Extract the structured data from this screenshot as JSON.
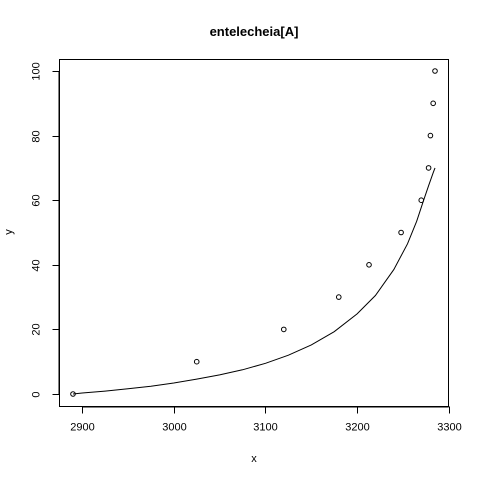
{
  "chart_data": {
    "type": "scatter",
    "title": "entelecheia[A]",
    "xlabel": "x",
    "ylabel": "y",
    "xlim": [
      2890,
      3285
    ],
    "ylim": [
      0,
      100
    ],
    "x_ticks": [
      2900,
      3000,
      3100,
      3200,
      3300
    ],
    "y_ticks": [
      0,
      20,
      40,
      60,
      80,
      100
    ],
    "grid": false,
    "series": [
      {
        "kind": "points",
        "marker": "open-circle",
        "x": [
          2890,
          3025,
          3120,
          3180,
          3213,
          3248,
          3270,
          3278,
          3280,
          3283,
          3285
        ],
        "y": [
          0,
          10,
          20,
          30,
          40,
          50,
          60,
          70,
          80,
          90,
          100
        ]
      },
      {
        "kind": "fitted-curve",
        "x": [
          2890,
          2900,
          2925,
          2950,
          2975,
          3000,
          3025,
          3050,
          3075,
          3100,
          3125,
          3150,
          3175,
          3200,
          3220,
          3240,
          3255,
          3265,
          3272,
          3278,
          3283,
          3285
        ],
        "y": [
          0,
          0.3,
          0.9,
          1.6,
          2.4,
          3.4,
          4.6,
          5.9,
          7.5,
          9.5,
          12.0,
          15.2,
          19.3,
          24.8,
          30.5,
          38.5,
          46.5,
          53.5,
          59.5,
          64.5,
          68.5,
          70
        ]
      }
    ]
  }
}
